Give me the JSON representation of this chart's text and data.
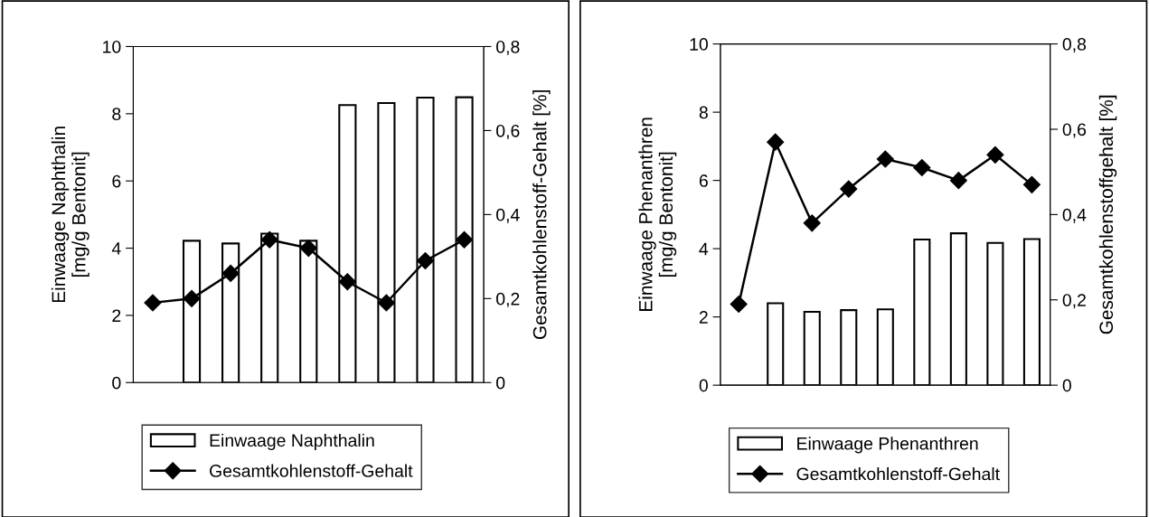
{
  "chart_data": [
    {
      "type": "bar",
      "categories": [
        null,
        null,
        null,
        null,
        null,
        null,
        null,
        null,
        null
      ],
      "ylabel": "Einwaage Naphthalin\n[mg/g Bentonit]",
      "y2label": "Gesamtkohlenstoff-Gehalt [%]",
      "series": [
        {
          "name": "Einwaage Naphthalin",
          "color": "#ffffff",
          "values": [
            null,
            4.22,
            4.14,
            4.43,
            4.22,
            8.26,
            8.32,
            8.48,
            8.49
          ]
        },
        {
          "name": "Gesamtkohlenstoff-Gehalt",
          "type": "line",
          "axis": "y2",
          "color": "#000000",
          "marker": "diamond",
          "values": [
            0.19,
            0.2,
            0.26,
            0.34,
            0.32,
            0.24,
            0.19,
            0.29,
            0.34
          ]
        }
      ],
      "ylim": [
        0,
        10
      ],
      "yticks": [
        0,
        2,
        4,
        6,
        8,
        10
      ],
      "y2lim": [
        0,
        0.8
      ],
      "y2ticks": [
        0,
        {
          "value": 0.2,
          "label": "0,2"
        },
        {
          "value": 0.4,
          "label": "0,4"
        },
        {
          "value": 0.6,
          "label": "0,6"
        },
        {
          "value": 0.8,
          "label": "0,8"
        }
      ],
      "grid": false,
      "legend": "bottom",
      "tick_labels": "y"
    },
    {
      "type": "bar",
      "categories": [
        null,
        null,
        null,
        null,
        null,
        null,
        null,
        null,
        null
      ],
      "ylabel": "Einwaage Phenanthren\n[mg/g Bentonit]",
      "y2label": "Gesamtkohlenstoffgehalt [%]",
      "series": [
        {
          "name": "Einwaage Phenanthren",
          "color": "#ffffff",
          "values": [
            null,
            2.4,
            2.15,
            2.2,
            2.22,
            4.27,
            4.45,
            4.17,
            4.28
          ]
        },
        {
          "name": "Gesamtkohlenstoff-Gehalt",
          "type": "line",
          "axis": "y2",
          "color": "#000000",
          "marker": "diamond",
          "values": [
            0.19,
            0.57,
            0.38,
            0.46,
            0.53,
            0.51,
            0.48,
            0.54,
            0.47
          ]
        }
      ],
      "ylim": [
        0,
        10
      ],
      "yticks": [
        0,
        2,
        4,
        6,
        8,
        10
      ],
      "y2lim": [
        0,
        0.8
      ],
      "y2ticks": [
        0,
        {
          "value": 0.2,
          "label": "0,2"
        },
        {
          "value": 0.4,
          "label": "0,4"
        },
        {
          "value": 0.6,
          "label": "0,6"
        },
        {
          "value": 0.8,
          "label": "0,8"
        }
      ],
      "grid": false,
      "legend": "bottom",
      "tick_labels": "y"
    }
  ]
}
